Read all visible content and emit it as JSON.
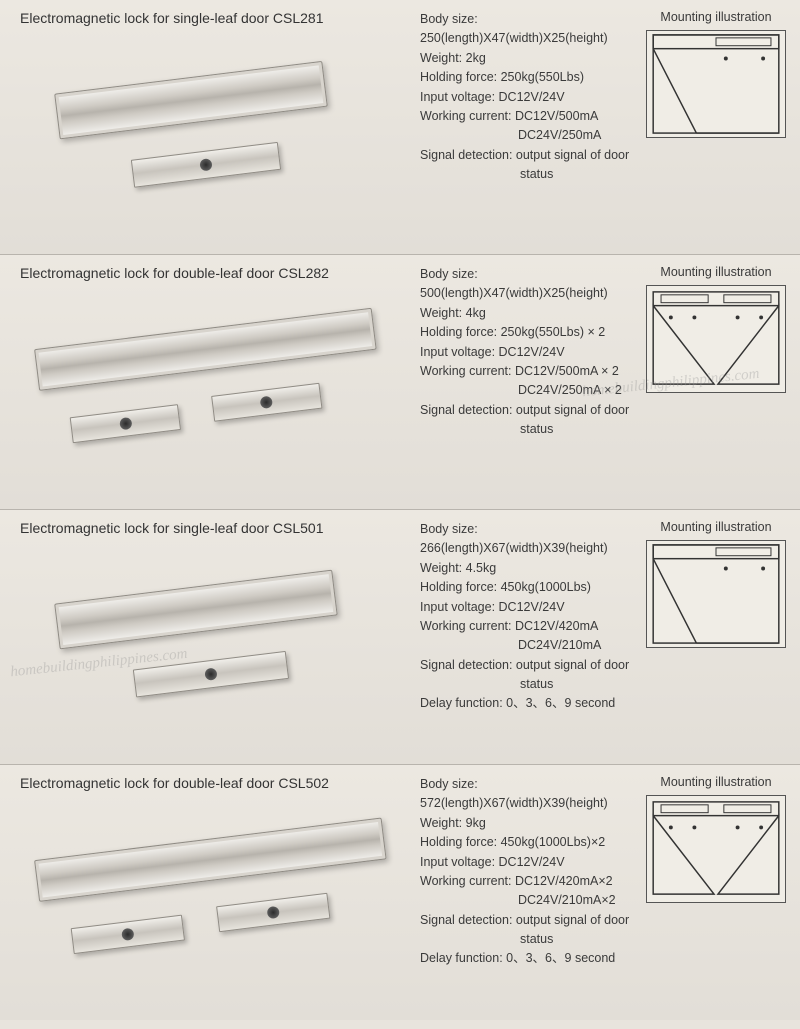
{
  "mounting_label": "Mounting illustration",
  "watermark_text": "homebuildingphilippines.com",
  "products": [
    {
      "title": "Electromagnetic lock for single-leaf door CSL281",
      "specs": {
        "body_size_label": "Body size:",
        "body_size": "250(length)X47(width)X25(height)",
        "weight": "Weight: 2kg",
        "holding_force": "Holding force: 250kg(550Lbs)",
        "input_voltage": "Input voltage: DC12V/24V",
        "working_current_label": "Working current: DC12V/500mA",
        "working_current_2": "DC24V/250mA",
        "signal_detection_label": "Signal detection: output signal of door",
        "signal_detection_2": "status",
        "delay": ""
      },
      "mount_type": "single",
      "visual": {
        "type": "single",
        "body_w": 270
      }
    },
    {
      "title": "Electromagnetic lock for double-leaf door CSL282",
      "specs": {
        "body_size_label": "Body size:",
        "body_size": "500(length)X47(width)X25(height)",
        "weight": "Weight: 4kg",
        "holding_force": "Holding force: 250kg(550Lbs) × 2",
        "input_voltage": "Input voltage: DC12V/24V",
        "working_current_label": "Working current: DC12V/500mA × 2",
        "working_current_2": "DC24V/250mA × 2",
        "signal_detection_label": "Signal detection: output signal of door",
        "signal_detection_2": "status",
        "delay": ""
      },
      "mount_type": "double",
      "visual": {
        "type": "double",
        "body_w": 340
      }
    },
    {
      "title": "Electromagnetic lock for single-leaf door CSL501",
      "specs": {
        "body_size_label": "Body size:",
        "body_size": "266(length)X67(width)X39(height)",
        "weight": "Weight: 4.5kg",
        "holding_force": "Holding force: 450kg(1000Lbs)",
        "input_voltage": "Input voltage: DC12V/24V",
        "working_current_label": "Working current: DC12V/420mA",
        "working_current_2": "DC24V/210mA",
        "signal_detection_label": "Signal detection: output signal of door",
        "signal_detection_2": "status",
        "delay": "Delay function: 0、3、6、9 second"
      },
      "mount_type": "single",
      "visual": {
        "type": "single",
        "body_w": 280
      }
    },
    {
      "title": "Electromagnetic lock for double-leaf door CSL502",
      "specs": {
        "body_size_label": "Body size:",
        "body_size": "572(length)X67(width)X39(height)",
        "weight": "Weight: 9kg",
        "holding_force": "Holding force: 450kg(1000Lbs)×2",
        "input_voltage": "Input voltage: DC12V/24V",
        "working_current_label": "Working current: DC12V/420mA×2",
        "working_current_2": "DC24V/210mA×2",
        "signal_detection_label": "Signal detection: output signal of door",
        "signal_detection_2": "status",
        "delay": "Delay function: 0、3、6、9 second"
      },
      "mount_type": "double",
      "visual": {
        "type": "double",
        "body_w": 350
      }
    }
  ],
  "colors": {
    "metal_light": "#f6f5f2",
    "metal_mid": "#cfcbc4",
    "metal_dark": "#b7b3ac",
    "border": "#8f8b84",
    "bg": "#e8e4dd"
  }
}
